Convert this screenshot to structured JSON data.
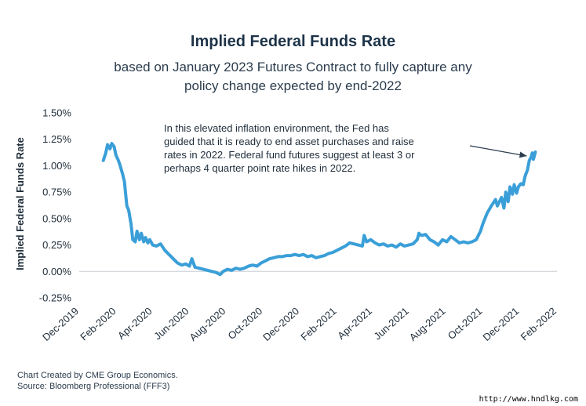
{
  "chart_data": {
    "type": "line",
    "title": "Implied Federal Funds Rate",
    "subtitle_lines": [
      "based on January 2023 Futures Contract to fully capture any",
      "policy change expected by end-2022"
    ],
    "ylabel": "Implied Federal Funds Rate",
    "xlabel": "",
    "ylim": [
      -0.25,
      1.5
    ],
    "yticks": [
      "1.50%",
      "1.25%",
      "1.00%",
      "0.75%",
      "0.50%",
      "0.25%",
      "0.00%",
      "-0.25%"
    ],
    "ytick_values": [
      1.5,
      1.25,
      1.0,
      0.75,
      0.5,
      0.25,
      0.0,
      -0.25
    ],
    "xticks": [
      "Dec-2019",
      "Feb-2020",
      "Apr-2020",
      "Jun-2020",
      "Aug-2020",
      "Oct-2020",
      "Dec-2020",
      "Feb-2021",
      "Apr-2021",
      "Jun-2021",
      "Aug-2021",
      "Oct-2021",
      "Dec-2021",
      "Feb-2022"
    ],
    "xlim": [
      "2019-12-01",
      "2022-02-01"
    ],
    "grid": false,
    "series": [
      {
        "color": "#3a9fd8",
        "points": [
          [
            "2020-01-10",
            1.05
          ],
          [
            "2020-01-14",
            1.12
          ],
          [
            "2020-01-17",
            1.2
          ],
          [
            "2020-01-21",
            1.16
          ],
          [
            "2020-01-24",
            1.21
          ],
          [
            "2020-01-28",
            1.18
          ],
          [
            "2020-01-31",
            1.1
          ],
          [
            "2020-02-04",
            1.05
          ],
          [
            "2020-02-07",
            1.0
          ],
          [
            "2020-02-11",
            0.92
          ],
          [
            "2020-02-14",
            0.85
          ],
          [
            "2020-02-18",
            0.62
          ],
          [
            "2020-02-21",
            0.58
          ],
          [
            "2020-02-25",
            0.45
          ],
          [
            "2020-02-28",
            0.3
          ],
          [
            "2020-03-03",
            0.28
          ],
          [
            "2020-03-06",
            0.38
          ],
          [
            "2020-03-10",
            0.3
          ],
          [
            "2020-03-13",
            0.36
          ],
          [
            "2020-03-17",
            0.28
          ],
          [
            "2020-03-20",
            0.32
          ],
          [
            "2020-03-24",
            0.27
          ],
          [
            "2020-03-27",
            0.3
          ],
          [
            "2020-04-01",
            0.25
          ],
          [
            "2020-04-07",
            0.24
          ],
          [
            "2020-04-14",
            0.26
          ],
          [
            "2020-04-21",
            0.2
          ],
          [
            "2020-04-28",
            0.16
          ],
          [
            "2020-05-05",
            0.12
          ],
          [
            "2020-05-12",
            0.08
          ],
          [
            "2020-05-19",
            0.06
          ],
          [
            "2020-05-26",
            0.07
          ],
          [
            "2020-06-01",
            0.05
          ],
          [
            "2020-06-05",
            0.12
          ],
          [
            "2020-06-10",
            0.04
          ],
          [
            "2020-06-17",
            0.03
          ],
          [
            "2020-06-24",
            0.02
          ],
          [
            "2020-07-01",
            0.01
          ],
          [
            "2020-07-08",
            0.0
          ],
          [
            "2020-07-15",
            -0.01
          ],
          [
            "2020-07-22",
            -0.03
          ],
          [
            "2020-07-27",
            0.0
          ],
          [
            "2020-08-03",
            0.02
          ],
          [
            "2020-08-10",
            0.01
          ],
          [
            "2020-08-17",
            0.03
          ],
          [
            "2020-08-24",
            0.02
          ],
          [
            "2020-08-31",
            0.03
          ],
          [
            "2020-09-07",
            0.05
          ],
          [
            "2020-09-14",
            0.06
          ],
          [
            "2020-09-21",
            0.05
          ],
          [
            "2020-09-28",
            0.08
          ],
          [
            "2020-10-05",
            0.1
          ],
          [
            "2020-10-12",
            0.12
          ],
          [
            "2020-10-19",
            0.13
          ],
          [
            "2020-10-26",
            0.14
          ],
          [
            "2020-11-02",
            0.14
          ],
          [
            "2020-11-09",
            0.15
          ],
          [
            "2020-11-16",
            0.15
          ],
          [
            "2020-11-23",
            0.16
          ],
          [
            "2020-11-30",
            0.15
          ],
          [
            "2020-12-07",
            0.16
          ],
          [
            "2020-12-14",
            0.14
          ],
          [
            "2020-12-21",
            0.15
          ],
          [
            "2020-12-28",
            0.13
          ],
          [
            "2021-01-04",
            0.14
          ],
          [
            "2021-01-11",
            0.15
          ],
          [
            "2021-01-18",
            0.17
          ],
          [
            "2021-01-25",
            0.18
          ],
          [
            "2021-02-01",
            0.2
          ],
          [
            "2021-02-08",
            0.22
          ],
          [
            "2021-02-15",
            0.24
          ],
          [
            "2021-02-22",
            0.27
          ],
          [
            "2021-03-01",
            0.26
          ],
          [
            "2021-03-08",
            0.25
          ],
          [
            "2021-03-15",
            0.24
          ],
          [
            "2021-03-18",
            0.34
          ],
          [
            "2021-03-22",
            0.28
          ],
          [
            "2021-03-29",
            0.3
          ],
          [
            "2021-04-05",
            0.27
          ],
          [
            "2021-04-12",
            0.25
          ],
          [
            "2021-04-19",
            0.26
          ],
          [
            "2021-04-26",
            0.24
          ],
          [
            "2021-05-03",
            0.25
          ],
          [
            "2021-05-10",
            0.23
          ],
          [
            "2021-05-17",
            0.26
          ],
          [
            "2021-05-24",
            0.24
          ],
          [
            "2021-05-31",
            0.25
          ],
          [
            "2021-06-07",
            0.26
          ],
          [
            "2021-06-14",
            0.3
          ],
          [
            "2021-06-17",
            0.36
          ],
          [
            "2021-06-21",
            0.34
          ],
          [
            "2021-06-28",
            0.35
          ],
          [
            "2021-07-05",
            0.3
          ],
          [
            "2021-07-12",
            0.28
          ],
          [
            "2021-07-19",
            0.25
          ],
          [
            "2021-07-26",
            0.3
          ],
          [
            "2021-08-02",
            0.28
          ],
          [
            "2021-08-09",
            0.33
          ],
          [
            "2021-08-16",
            0.3
          ],
          [
            "2021-08-23",
            0.27
          ],
          [
            "2021-08-30",
            0.28
          ],
          [
            "2021-09-06",
            0.27
          ],
          [
            "2021-09-13",
            0.28
          ],
          [
            "2021-09-20",
            0.3
          ],
          [
            "2021-09-27",
            0.38
          ],
          [
            "2021-10-01",
            0.45
          ],
          [
            "2021-10-08",
            0.55
          ],
          [
            "2021-10-15",
            0.62
          ],
          [
            "2021-10-22",
            0.68
          ],
          [
            "2021-10-25",
            0.62
          ],
          [
            "2021-11-01",
            0.7
          ],
          [
            "2021-11-05",
            0.6
          ],
          [
            "2021-11-08",
            0.75
          ],
          [
            "2021-11-12",
            0.66
          ],
          [
            "2021-11-15",
            0.8
          ],
          [
            "2021-11-19",
            0.73
          ],
          [
            "2021-11-22",
            0.82
          ],
          [
            "2021-11-26",
            0.74
          ],
          [
            "2021-11-29",
            0.8
          ],
          [
            "2021-12-03",
            0.83
          ],
          [
            "2021-12-07",
            0.82
          ],
          [
            "2021-12-10",
            0.9
          ],
          [
            "2021-12-14",
            0.96
          ],
          [
            "2021-12-17",
            1.05
          ],
          [
            "2021-12-20",
            1.08
          ],
          [
            "2021-12-22",
            1.12
          ],
          [
            "2021-12-24",
            1.06
          ],
          [
            "2021-12-27",
            1.13
          ]
        ]
      }
    ],
    "annotation": {
      "lines": [
        "In this elevated inflation environment, the Fed has",
        "guided that it is ready to end asset purchases and raise",
        "rates in 2022.  Federal fund futures suggest at least 3 or",
        "perhaps 4 quarter point rate hikes in 2022."
      ],
      "arrow_to": [
        "2021-12-18",
        1.07
      ]
    }
  },
  "footer": {
    "credit": "Chart Created by CME Group Economics.",
    "source": "Source:  Bloomberg Professional (FFF3)"
  },
  "watermark": "http://www.hndlkg.com"
}
